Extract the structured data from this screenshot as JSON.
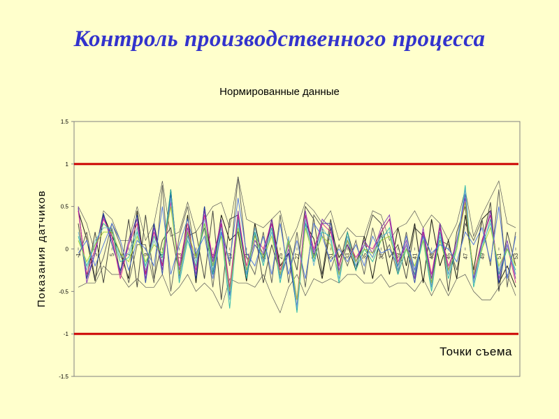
{
  "slide": {
    "title": "Контроль производственного процесса"
  },
  "chart_data": {
    "type": "line",
    "title": "Нормированные данные",
    "xlabel": "Точки съема",
    "ylabel": "Показания  датчиков",
    "ylim": [
      -1.5,
      1.5
    ],
    "yticks": [
      "1.5",
      "1",
      "0.5",
      "0",
      "-0.5",
      "-1",
      "-1.5"
    ],
    "xtick_labels": [
      "1",
      "3",
      "5",
      "7",
      "9",
      "11",
      "13",
      "15",
      "17",
      "19",
      "21",
      "23",
      "25",
      "27",
      "29",
      "31",
      "33",
      "35",
      "37",
      "39",
      "41",
      "43",
      "45",
      "47",
      "49",
      "51",
      "53"
    ],
    "control_limits": [
      1,
      -1
    ],
    "limit_color": "#CC0000",
    "grid": false,
    "x": [
      1,
      2,
      3,
      4,
      5,
      6,
      7,
      8,
      9,
      10,
      11,
      12,
      13,
      14,
      15,
      16,
      17,
      18,
      19,
      20,
      21,
      22,
      23,
      24,
      25,
      26,
      27,
      28,
      29,
      30,
      31,
      32,
      33,
      34,
      35,
      36,
      37,
      38,
      39,
      40,
      41,
      42,
      43,
      44,
      45,
      46,
      47,
      48,
      49,
      50,
      51,
      52,
      53
    ],
    "envelope": {
      "upper": [
        0.5,
        0.3,
        -0.05,
        0.45,
        0.35,
        0.1,
        0.1,
        0.5,
        0.1,
        0.3,
        0.8,
        0.15,
        0.2,
        0.55,
        0.2,
        0.35,
        0.5,
        0.55,
        0.25,
        0.85,
        0.35,
        0.3,
        0.25,
        0.35,
        0.45,
        0.05,
        0.25,
        0.55,
        0.45,
        0.3,
        0.45,
        0.1,
        0.25,
        0.15,
        0.15,
        0.45,
        0.4,
        0.1,
        0.25,
        0.3,
        0.45,
        0.25,
        0.4,
        0.3,
        0.1,
        0.3,
        0.7,
        0.15,
        0.4,
        0.6,
        0.8,
        0.3,
        0.25
      ],
      "lower": [
        -0.45,
        -0.4,
        -0.4,
        -0.2,
        -0.3,
        -0.3,
        -0.45,
        -0.35,
        -0.45,
        -0.45,
        -0.3,
        -0.55,
        -0.45,
        -0.3,
        -0.5,
        -0.4,
        -0.5,
        -0.7,
        -0.35,
        -0.4,
        -0.4,
        -0.45,
        -0.3,
        -0.55,
        -0.75,
        -0.45,
        -0.3,
        -0.55,
        -0.35,
        -0.4,
        -0.35,
        -0.4,
        -0.3,
        -0.3,
        -0.4,
        -0.4,
        -0.3,
        -0.45,
        -0.4,
        -0.4,
        -0.5,
        -0.35,
        -0.55,
        -0.35,
        -0.55,
        -0.35,
        -0.3,
        -0.5,
        -0.6,
        -0.6,
        -0.45,
        -0.3,
        -0.55
      ]
    },
    "series": [
      {
        "color": "#000000",
        "values": [
          0.45,
          0.12,
          -0.38,
          0.4,
          0.15,
          -0.05,
          -0.35,
          0.45,
          -0.3,
          0.3,
          -0.2,
          0.7,
          -0.35,
          0.4,
          -0.4,
          0.5,
          -0.3,
          0.4,
          0.1,
          0.2,
          -0.38,
          0.3,
          -0.15,
          0.35,
          -0.2,
          -0.05,
          -0.7,
          0.3,
          0.12,
          -0.35,
          0.25,
          -0.1,
          0.05,
          -0.25,
          0.15,
          -0.35,
          0.2,
          -0.3,
          0.25,
          -0.2,
          0.3,
          -0.4,
          0.35,
          -0.2,
          0.1,
          -0.35,
          0.4,
          -0.25,
          0.35,
          0.45,
          -0.4,
          -0.2,
          -0.45
        ]
      },
      {
        "color": "#333333",
        "values": [
          0.3,
          -0.35,
          0.2,
          -0.4,
          0.25,
          -0.3,
          0.35,
          -0.45,
          0.4,
          -0.35,
          0.1,
          0.25,
          -0.3,
          0.15,
          0.2,
          -0.35,
          0.45,
          -0.6,
          0.35,
          0.4,
          -0.3,
          0.2,
          -0.4,
          0.05,
          -0.3,
          0.1,
          -0.25,
          0.5,
          0.35,
          -0.3,
          0.35,
          -0.2,
          0.2,
          -0.15,
          0.05,
          0.4,
          0.3,
          -0.1,
          0.05,
          -0.35,
          0.25,
          0.15,
          -0.45,
          0.3,
          -0.5,
          0.2,
          0.5,
          -0.35,
          0.05,
          0.55,
          -0.5,
          0.2,
          -0.2
        ]
      },
      {
        "color": "#555555",
        "values": [
          -0.1,
          0.2,
          -0.35,
          -0.1,
          0.3,
          0.05,
          -0.4,
          0.05,
          0.05,
          -0.4,
          0.75,
          -0.5,
          0.15,
          0.5,
          -0.1,
          0.25,
          -0.45,
          0.3,
          -0.2,
          0.85,
          -0.1,
          -0.3,
          0.2,
          -0.4,
          0.4,
          -0.4,
          0.2,
          -0.45,
          0.4,
          0.25,
          -0.25,
          0.05,
          -0.2,
          0.1,
          -0.3,
          0.25,
          -0.1,
          0.05,
          -0.3,
          0.2,
          -0.35,
          0.2,
          -0.1,
          0.1,
          0.05,
          -0.25,
          0.3,
          0.1,
          0.35,
          -0.2,
          0.7,
          -0.45,
          0.2
        ]
      },
      {
        "color": "#1F3BA8",
        "values": [
          0.48,
          -0.35,
          -0.05,
          0.42,
          0.05,
          -0.25,
          0.05,
          0.4,
          -0.4,
          0.3,
          -0.3,
          0.65,
          -0.3,
          0.2,
          -0.35,
          0.5,
          -0.2,
          0.3,
          -0.55,
          0.4,
          -0.3,
          0.05,
          -0.1,
          0.3,
          -0.35,
          -0.05,
          -0.72,
          0.4,
          -0.1,
          0.3,
          0.3,
          -0.3,
          0.1,
          -0.2,
          0.05,
          -0.1,
          0.2,
          0.35,
          -0.25,
          0.05,
          -0.4,
          0.2,
          -0.4,
          0.25,
          -0.3,
          0.05,
          0.65,
          -0.4,
          0.1,
          0.4,
          -0.4,
          0.05,
          -0.3
        ]
      },
      {
        "color": "#7B2DB8",
        "values": [
          0.5,
          -0.4,
          -0.05,
          0.38,
          0.1,
          -0.3,
          0.1,
          0.35,
          -0.35,
          0.25,
          -0.25,
          0.6,
          -0.25,
          0.25,
          -0.3,
          0.45,
          -0.15,
          0.35,
          -0.5,
          0.45,
          -0.25,
          0.1,
          -0.05,
          0.35,
          -0.3,
          0.0,
          -0.68,
          0.45,
          -0.05,
          0.35,
          0.25,
          -0.25,
          0.05,
          -0.15,
          0.1,
          -0.05,
          0.25,
          0.4,
          -0.2,
          0.1,
          -0.35,
          0.25,
          -0.35,
          0.3,
          -0.25,
          0.1,
          0.6,
          -0.35,
          0.05,
          0.45,
          -0.35,
          0.1,
          -0.35
        ]
      },
      {
        "color": "#D02090",
        "values": [
          0.45,
          -0.3,
          0.0,
          0.35,
          0.15,
          -0.35,
          0.05,
          0.3,
          -0.3,
          0.2,
          -0.2,
          0.55,
          -0.2,
          0.3,
          -0.25,
          0.4,
          -0.1,
          0.3,
          -0.45,
          0.4,
          -0.2,
          0.15,
          0.0,
          0.3,
          -0.25,
          0.05,
          -0.6,
          0.4,
          0.0,
          0.3,
          0.2,
          -0.2,
          0.1,
          -0.1,
          0.05,
          0.0,
          0.2,
          0.35,
          -0.15,
          0.05,
          -0.3,
          0.2,
          -0.3,
          0.25,
          -0.2,
          0.05,
          0.55,
          -0.3,
          0.1,
          0.4,
          -0.3,
          0.05,
          -0.4
        ]
      },
      {
        "color": "#20B2AA",
        "values": [
          0.15,
          -0.2,
          0.05,
          0.3,
          0.2,
          -0.15,
          -0.1,
          0.2,
          -0.2,
          0.15,
          -0.1,
          0.7,
          -0.4,
          0.1,
          -0.2,
          0.3,
          -0.3,
          0.2,
          -0.7,
          0.35,
          -0.35,
          0.2,
          -0.2,
          0.25,
          -0.4,
          0.1,
          -0.75,
          0.3,
          -0.15,
          0.2,
          0.15,
          -0.4,
          0.2,
          -0.25,
          0.0,
          -0.15,
          0.1,
          0.25,
          -0.3,
          0.0,
          -0.3,
          0.1,
          -0.5,
          0.2,
          -0.35,
          0.0,
          0.75,
          -0.45,
          0.0,
          0.35,
          -0.3,
          0.0,
          -0.25
        ]
      },
      {
        "color": "#6BAED6",
        "values": [
          0.2,
          -0.25,
          0.1,
          0.25,
          0.25,
          -0.1,
          -0.05,
          0.25,
          -0.25,
          0.1,
          -0.15,
          0.6,
          -0.35,
          0.15,
          -0.15,
          0.35,
          -0.25,
          0.25,
          -0.6,
          0.3,
          -0.3,
          0.25,
          -0.15,
          0.2,
          -0.35,
          0.15,
          -0.7,
          0.35,
          -0.2,
          0.25,
          0.1,
          -0.35,
          0.15,
          -0.2,
          0.05,
          -0.1,
          0.15,
          0.2,
          -0.25,
          0.05,
          -0.25,
          0.15,
          -0.45,
          0.15,
          -0.3,
          0.05,
          0.7,
          -0.4,
          0.05,
          0.3,
          -0.25,
          0.05,
          -0.3
        ]
      },
      {
        "color": "#9ACD32",
        "values": [
          0.1,
          -0.15,
          0.05,
          0.2,
          0.2,
          -0.05,
          -0.15,
          0.15,
          -0.15,
          0.05,
          -0.05,
          0.5,
          -0.3,
          0.2,
          -0.1,
          0.3,
          -0.2,
          0.15,
          -0.5,
          0.25,
          -0.25,
          0.15,
          -0.1,
          0.15,
          -0.3,
          0.1,
          -0.6,
          0.25,
          -0.1,
          0.15,
          0.05,
          -0.3,
          0.1,
          -0.15,
          0.0,
          -0.05,
          0.1,
          0.15,
          -0.2,
          0.0,
          -0.2,
          0.1,
          -0.4,
          0.1,
          -0.25,
          0.0,
          0.55,
          -0.3,
          0.0,
          0.25,
          -0.2,
          0.0,
          -0.2
        ]
      },
      {
        "color": "#4169E1",
        "values": [
          -0.05,
          0.1,
          -0.2,
          0.05,
          0.3,
          0.1,
          -0.25,
          0.1,
          0.0,
          -0.2,
          0.5,
          -0.3,
          0.05,
          0.35,
          -0.05,
          0.15,
          -0.35,
          0.2,
          -0.15,
          0.6,
          -0.05,
          -0.2,
          0.15,
          -0.3,
          0.3,
          -0.3,
          0.1,
          -0.35,
          0.3,
          0.15,
          -0.15,
          0.0,
          -0.15,
          0.05,
          -0.2,
          0.15,
          -0.05,
          0.0,
          -0.2,
          0.15,
          -0.25,
          0.15,
          -0.05,
          0.05,
          0.0,
          -0.15,
          0.2,
          0.05,
          0.25,
          -0.15,
          0.5,
          -0.35,
          0.15
        ]
      }
    ]
  }
}
